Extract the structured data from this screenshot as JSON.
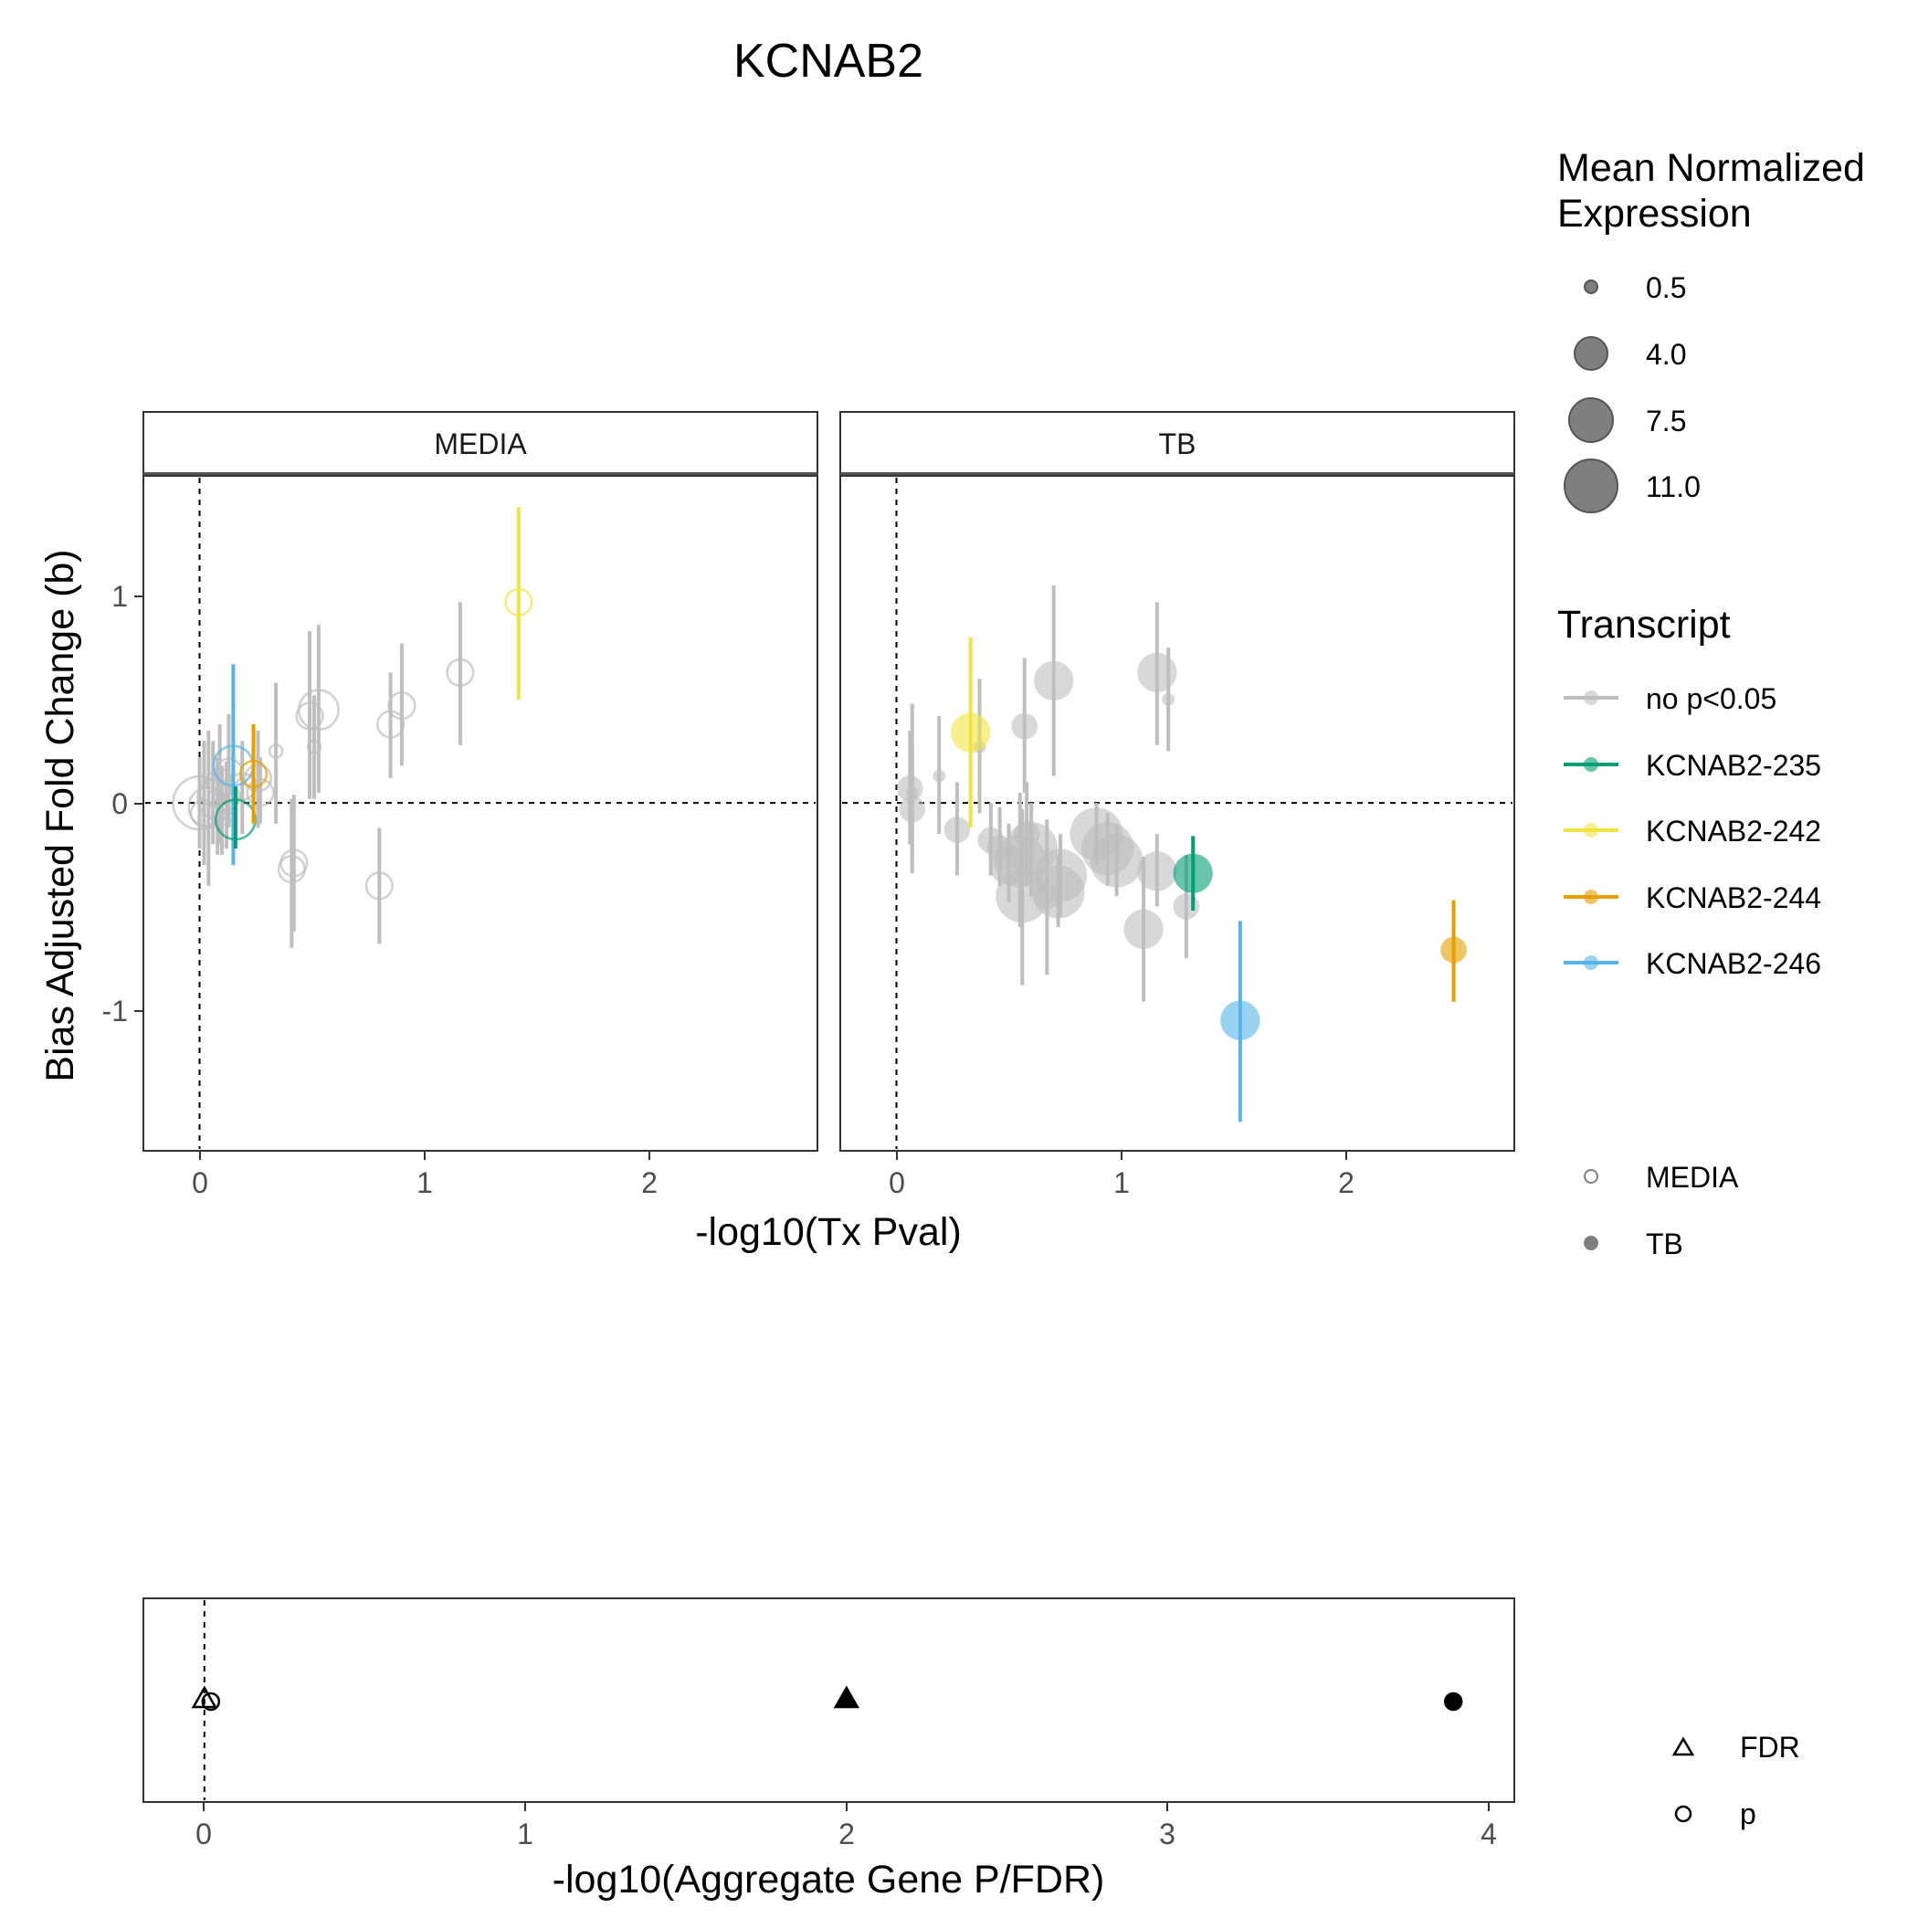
{
  "chart_data": [
    {
      "type": "scatter",
      "title": "KCNAB2",
      "xlabel": "-log10(Tx Pval)",
      "ylabel": "Bias Adjusted Fold Change (b)",
      "xlim": [
        -0.25,
        2.75
      ],
      "ylim": [
        -1.68,
        1.58
      ],
      "x_ticks": [
        "0",
        "1",
        "2"
      ],
      "y_ticks": [
        "-1",
        "0",
        "1"
      ],
      "reference_lines": {
        "x": 0,
        "y": 0
      },
      "grid": false,
      "facets": [
        "MEDIA",
        "TB"
      ],
      "legend_placement": "right",
      "size_legend": {
        "title_line1": "Mean Normalized",
        "title_line2": "Expression",
        "values": [
          "0.5",
          "4.0",
          "7.5",
          "11.0"
        ]
      },
      "color_legend": {
        "title": "Transcript",
        "entries": [
          {
            "label": "no p<0.05",
            "color": "#BEBEBE"
          },
          {
            "label": "KCNAB2-235",
            "color": "#009E73"
          },
          {
            "label": "KCNAB2-242",
            "color": "#F0E442"
          },
          {
            "label": "KCNAB2-244",
            "color": "#E69F00"
          },
          {
            "label": "KCNAB2-246",
            "color": "#56B4E9"
          }
        ]
      },
      "shape_legend": {
        "entries": [
          {
            "label": "MEDIA",
            "shape": "open-circle"
          },
          {
            "label": "TB",
            "shape": "filled-circle"
          }
        ]
      },
      "series": [
        {
          "facet": "MEDIA",
          "points": [
            {
              "x": 0.0,
              "y": 0.0,
              "lo": -0.22,
              "hi": 0.22,
              "size": 11.0,
              "tx": "no p<0.05"
            },
            {
              "x": 0.02,
              "y": -0.05,
              "lo": -0.3,
              "hi": 0.3,
              "size": 4.0,
              "tx": "no p<0.05"
            },
            {
              "x": 0.04,
              "y": -0.02,
              "lo": -0.4,
              "hi": 0.35,
              "size": 7.5,
              "tx": "no p<0.05"
            },
            {
              "x": 0.06,
              "y": 0.05,
              "lo": -0.2,
              "hi": 0.3,
              "size": 4.0,
              "tx": "no p<0.05"
            },
            {
              "x": 0.08,
              "y": 0.02,
              "lo": -0.25,
              "hi": 0.22,
              "size": 7.5,
              "tx": "no p<0.05"
            },
            {
              "x": 0.09,
              "y": 0.1,
              "lo": -0.2,
              "hi": 0.38,
              "size": 4.0,
              "tx": "no p<0.05"
            },
            {
              "x": 0.1,
              "y": -0.04,
              "lo": -0.25,
              "hi": 0.18,
              "size": 4.0,
              "tx": "no p<0.05"
            },
            {
              "x": 0.12,
              "y": 0.03,
              "lo": -0.22,
              "hi": 0.2,
              "size": 4.0,
              "tx": "no p<0.05"
            },
            {
              "x": 0.13,
              "y": 0.15,
              "lo": -0.12,
              "hi": 0.43,
              "size": 4.0,
              "tx": "no p<0.05"
            },
            {
              "x": 0.15,
              "y": 0.18,
              "lo": -0.3,
              "hi": 0.67,
              "size": 7.5,
              "tx": "KCNAB2-246"
            },
            {
              "x": 0.16,
              "y": -0.08,
              "lo": -0.22,
              "hi": 0.08,
              "size": 7.5,
              "tx": "KCNAB2-235"
            },
            {
              "x": 0.19,
              "y": 0.08,
              "lo": -0.15,
              "hi": 0.3,
              "size": 4.0,
              "tx": "no p<0.05"
            },
            {
              "x": 0.24,
              "y": 0.14,
              "lo": -0.1,
              "hi": 0.38,
              "size": 4.0,
              "tx": "KCNAB2-244"
            },
            {
              "x": 0.26,
              "y": 0.12,
              "lo": -0.12,
              "hi": 0.35,
              "size": 4.0,
              "tx": "no p<0.05"
            },
            {
              "x": 0.27,
              "y": 0.05,
              "lo": -0.1,
              "hi": 0.22,
              "size": 4.0,
              "tx": "no p<0.05"
            },
            {
              "x": 0.34,
              "y": 0.25,
              "lo": -0.1,
              "hi": 0.58,
              "size": 0.5,
              "tx": "no p<0.05"
            },
            {
              "x": 0.41,
              "y": -0.32,
              "lo": -0.7,
              "hi": 0.02,
              "size": 4.0,
              "tx": "no p<0.05"
            },
            {
              "x": 0.42,
              "y": -0.29,
              "lo": -0.62,
              "hi": 0.04,
              "size": 4.0,
              "tx": "no p<0.05"
            },
            {
              "x": 0.49,
              "y": 0.42,
              "lo": 0.02,
              "hi": 0.83,
              "size": 4.0,
              "tx": "no p<0.05"
            },
            {
              "x": 0.51,
              "y": 0.27,
              "lo": 0.02,
              "hi": 0.52,
              "size": 0.5,
              "tx": "no p<0.05"
            },
            {
              "x": 0.53,
              "y": 0.45,
              "lo": 0.05,
              "hi": 0.86,
              "size": 7.5,
              "tx": "no p<0.05"
            },
            {
              "x": 0.8,
              "y": -0.4,
              "lo": -0.68,
              "hi": -0.12,
              "size": 4.0,
              "tx": "no p<0.05"
            },
            {
              "x": 0.85,
              "y": 0.38,
              "lo": 0.12,
              "hi": 0.63,
              "size": 4.0,
              "tx": "no p<0.05"
            },
            {
              "x": 0.9,
              "y": 0.47,
              "lo": 0.18,
              "hi": 0.77,
              "size": 4.0,
              "tx": "no p<0.05"
            },
            {
              "x": 1.16,
              "y": 0.63,
              "lo": 0.28,
              "hi": 0.97,
              "size": 4.0,
              "tx": "no p<0.05"
            },
            {
              "x": 1.42,
              "y": 0.97,
              "lo": 0.5,
              "hi": 1.43,
              "size": 4.0,
              "tx": "KCNAB2-242"
            }
          ]
        },
        {
          "facet": "TB",
          "points": [
            {
              "x": 0.06,
              "y": 0.07,
              "lo": -0.2,
              "hi": 0.35,
              "size": 4.0,
              "tx": "no p<0.05"
            },
            {
              "x": 0.07,
              "y": -0.03,
              "lo": -0.34,
              "hi": 0.28,
              "size": 4.0,
              "tx": "no p<0.05"
            },
            {
              "x": 0.07,
              "y": 0.05,
              "lo": -0.3,
              "hi": 0.48,
              "size": 0.5,
              "tx": "no p<0.05"
            },
            {
              "x": 0.19,
              "y": 0.13,
              "lo": -0.15,
              "hi": 0.42,
              "size": 0.5,
              "tx": "no p<0.05"
            },
            {
              "x": 0.27,
              "y": -0.13,
              "lo": -0.35,
              "hi": 0.1,
              "size": 4.0,
              "tx": "no p<0.05"
            },
            {
              "x": 0.33,
              "y": 0.34,
              "lo": -0.12,
              "hi": 0.8,
              "size": 7.5,
              "tx": "KCNAB2-242"
            },
            {
              "x": 0.37,
              "y": 0.27,
              "lo": -0.05,
              "hi": 0.6,
              "size": 0.5,
              "tx": "no p<0.05"
            },
            {
              "x": 0.42,
              "y": -0.18,
              "lo": -0.35,
              "hi": 0.0,
              "size": 4.0,
              "tx": "no p<0.05"
            },
            {
              "x": 0.46,
              "y": -0.22,
              "lo": -0.4,
              "hi": -0.02,
              "size": 4.0,
              "tx": "no p<0.05"
            },
            {
              "x": 0.5,
              "y": -0.3,
              "lo": -0.48,
              "hi": -0.1,
              "size": 7.5,
              "tx": "no p<0.05"
            },
            {
              "x": 0.55,
              "y": -0.28,
              "lo": -0.6,
              "hi": 0.05,
              "size": 11.0,
              "tx": "no p<0.05"
            },
            {
              "x": 0.56,
              "y": -0.45,
              "lo": -0.88,
              "hi": -0.03,
              "size": 11.0,
              "tx": "no p<0.05"
            },
            {
              "x": 0.57,
              "y": 0.37,
              "lo": 0.05,
              "hi": 0.7,
              "size": 4.0,
              "tx": "no p<0.05"
            },
            {
              "x": 0.58,
              "y": -0.15,
              "lo": -0.4,
              "hi": 0.1,
              "size": 4.0,
              "tx": "no p<0.05"
            },
            {
              "x": 0.6,
              "y": -0.22,
              "lo": -0.45,
              "hi": 0.0,
              "size": 11.0,
              "tx": "no p<0.05"
            },
            {
              "x": 0.67,
              "y": -0.45,
              "lo": -0.83,
              "hi": -0.08,
              "size": 4.0,
              "tx": "no p<0.05"
            },
            {
              "x": 0.7,
              "y": 0.59,
              "lo": 0.13,
              "hi": 1.05,
              "size": 7.5,
              "tx": "no p<0.05"
            },
            {
              "x": 0.72,
              "y": -0.43,
              "lo": -0.6,
              "hi": -0.25,
              "size": 11.0,
              "tx": "no p<0.05"
            },
            {
              "x": 0.73,
              "y": -0.35,
              "lo": -0.55,
              "hi": -0.15,
              "size": 11.0,
              "tx": "no p<0.05"
            },
            {
              "x": 0.89,
              "y": -0.15,
              "lo": -0.3,
              "hi": 0.0,
              "size": 11.0,
              "tx": "no p<0.05"
            },
            {
              "x": 0.94,
              "y": -0.22,
              "lo": -0.4,
              "hi": -0.05,
              "size": 11.0,
              "tx": "no p<0.05"
            },
            {
              "x": 0.98,
              "y": -0.28,
              "lo": -0.45,
              "hi": -0.1,
              "size": 11.0,
              "tx": "no p<0.05"
            },
            {
              "x": 1.1,
              "y": -0.61,
              "lo": -0.96,
              "hi": -0.26,
              "size": 7.5,
              "tx": "no p<0.05"
            },
            {
              "x": 1.16,
              "y": 0.63,
              "lo": 0.28,
              "hi": 0.97,
              "size": 7.5,
              "tx": "no p<0.05"
            },
            {
              "x": 1.16,
              "y": -0.33,
              "lo": -0.5,
              "hi": -0.15,
              "size": 7.5,
              "tx": "no p<0.05"
            },
            {
              "x": 1.21,
              "y": 0.5,
              "lo": 0.25,
              "hi": 0.75,
              "size": 0.5,
              "tx": "no p<0.05"
            },
            {
              "x": 1.29,
              "y": -0.5,
              "lo": -0.75,
              "hi": -0.25,
              "size": 4.0,
              "tx": "no p<0.05"
            },
            {
              "x": 1.32,
              "y": -0.34,
              "lo": -0.52,
              "hi": -0.16,
              "size": 7.5,
              "tx": "KCNAB2-235"
            },
            {
              "x": 1.53,
              "y": -1.05,
              "lo": -1.54,
              "hi": -0.57,
              "size": 7.5,
              "tx": "KCNAB2-246"
            },
            {
              "x": 2.48,
              "y": -0.71,
              "lo": -0.96,
              "hi": -0.47,
              "size": 4.0,
              "tx": "KCNAB2-244"
            }
          ]
        }
      ]
    },
    {
      "type": "scatter",
      "xlabel": "-log10(Aggregate Gene P/FDR)",
      "xlim": [
        -0.19,
        4.08
      ],
      "x_ticks": [
        "0",
        "1",
        "2",
        "3",
        "4"
      ],
      "reference_lines": {
        "x": 0
      },
      "grid": false,
      "shape_legend": {
        "entries": [
          {
            "label": "FDR",
            "shape": "triangle"
          },
          {
            "label": "p",
            "shape": "circle"
          }
        ]
      },
      "points": [
        {
          "x": 0.0,
          "measure": "FDR",
          "filled": false
        },
        {
          "x": 0.02,
          "measure": "p",
          "filled": false
        },
        {
          "x": 2.0,
          "measure": "FDR",
          "filled": true
        },
        {
          "x": 3.89,
          "measure": "p",
          "filled": true
        }
      ]
    }
  ]
}
